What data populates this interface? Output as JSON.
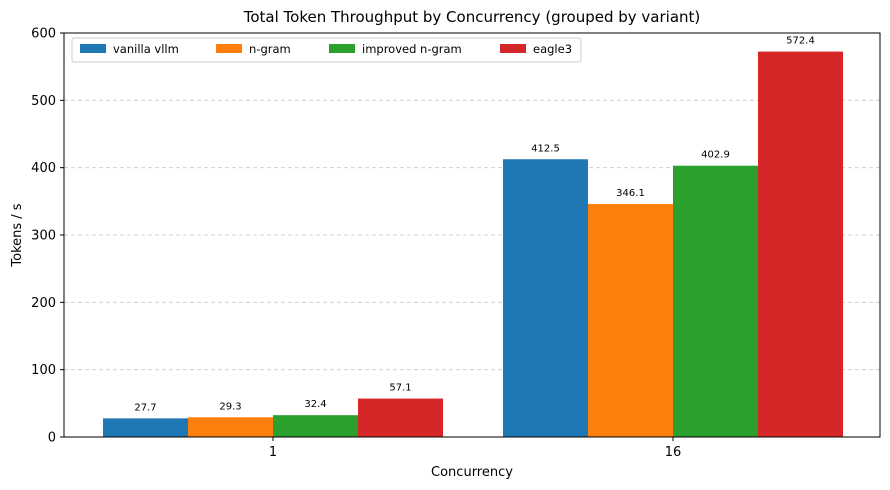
{
  "chart_data": {
    "type": "bar",
    "title": "Total Token Throughput by Concurrency (grouped by variant)",
    "xlabel": "Concurrency",
    "ylabel": "Tokens / s",
    "categories": [
      "1",
      "16"
    ],
    "series": [
      {
        "name": "vanilla vllm",
        "color": "#1f77b4",
        "values": [
          27.7,
          412.5
        ],
        "labels": [
          "27.7",
          "412.5"
        ]
      },
      {
        "name": "n-gram",
        "color": "#ff7f0e",
        "values": [
          29.3,
          346.1
        ],
        "labels": [
          "29.3",
          "346.1"
        ]
      },
      {
        "name": "improved n-gram",
        "color": "#2ca02c",
        "values": [
          32.4,
          402.9
        ],
        "labels": [
          "32.4",
          "402.9"
        ]
      },
      {
        "name": "eagle3",
        "color": "#d62728",
        "values": [
          57.1,
          572.4
        ],
        "labels": [
          "57.1",
          "572.4"
        ]
      }
    ],
    "ylim": [
      0,
      600
    ],
    "yticks": [
      "0",
      "100",
      "200",
      "300",
      "400",
      "500",
      "600"
    ],
    "grid": "y-dashed",
    "legend": "top-left"
  }
}
